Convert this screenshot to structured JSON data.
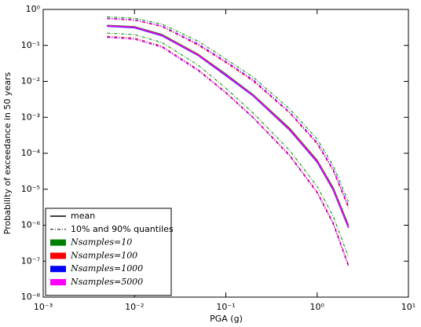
{
  "chart_data": {
    "type": "line",
    "xlabel": "PGA (g)",
    "ylabel": "Probability of exceedance in 50 years",
    "xlog": true,
    "ylog": true,
    "xlim": [
      0.001,
      10
    ],
    "ylim": [
      1e-08,
      1
    ],
    "xticks": [
      {
        "value": 0.001,
        "label": "10⁻³"
      },
      {
        "value": 0.01,
        "label": "10⁻²"
      },
      {
        "value": 0.1,
        "label": "10⁻¹"
      },
      {
        "value": 1,
        "label": "10⁰"
      },
      {
        "value": 10,
        "label": "10¹"
      }
    ],
    "yticks": [
      {
        "value": 1e-08,
        "label": "10⁻⁸"
      },
      {
        "value": 1e-07,
        "label": "10⁻⁷"
      },
      {
        "value": 1e-06,
        "label": "10⁻⁶"
      },
      {
        "value": 1e-05,
        "label": "10⁻⁵"
      },
      {
        "value": 0.0001,
        "label": "10⁻⁴"
      },
      {
        "value": 0.001,
        "label": "10⁻³"
      },
      {
        "value": 0.01,
        "label": "10⁻²"
      },
      {
        "value": 0.1,
        "label": "10⁻¹"
      },
      {
        "value": 1,
        "label": "10⁰"
      }
    ],
    "legend": "lower left",
    "line_styles": [
      "mean",
      "10% and 90% quantiles"
    ],
    "x": [
      0.005,
      0.01,
      0.02,
      0.05,
      0.1,
      0.2,
      0.5,
      1,
      1.5,
      2.2
    ],
    "series": [
      {
        "name": "Nsamples=10",
        "color": "#008000",
        "mean": [
          0.36,
          0.33,
          0.2,
          0.056,
          0.016,
          0.0042,
          0.00049,
          6.4e-05,
          1.1e-05,
          1e-06
        ],
        "q90": [
          0.62,
          0.57,
          0.39,
          0.13,
          0.042,
          0.013,
          0.0017,
          0.00025,
          4.5e-05,
          4.5e-06
        ],
        "q10": [
          0.22,
          0.2,
          0.12,
          0.028,
          0.0065,
          0.0013,
          0.00012,
          1.2e-05,
          1.8e-06,
          1.3e-07
        ]
      },
      {
        "name": "Nsamples=100",
        "color": "#ff0000",
        "mean": [
          0.35,
          0.32,
          0.19,
          0.054,
          0.015,
          0.004,
          0.00046,
          6e-05,
          1e-05,
          9e-07
        ],
        "q90": [
          0.55,
          0.5,
          0.33,
          0.1,
          0.033,
          0.01,
          0.0013,
          0.00018,
          3.2e-05,
          3e-06
        ],
        "q10": [
          0.18,
          0.16,
          0.095,
          0.021,
          0.005,
          0.001,
          9e-05,
          8.5e-06,
          1.2e-06,
          8e-08
        ]
      },
      {
        "name": "Nsamples=1000",
        "color": "#0000ff",
        "mean": [
          0.34,
          0.31,
          0.185,
          0.052,
          0.0145,
          0.0039,
          0.00044,
          5.7e-05,
          9.5e-06,
          8.5e-07
        ],
        "q90": [
          0.57,
          0.52,
          0.35,
          0.11,
          0.036,
          0.011,
          0.0014,
          0.0002,
          3.6e-05,
          3.5e-06
        ],
        "q10": [
          0.17,
          0.15,
          0.09,
          0.02,
          0.0048,
          0.00096,
          8.5e-05,
          8e-06,
          1.1e-06,
          7.5e-08
        ]
      },
      {
        "name": "Nsamples=5000",
        "color": "#ff00ff",
        "mean": [
          0.35,
          0.32,
          0.19,
          0.053,
          0.015,
          0.004,
          0.00045,
          5.9e-05,
          9.8e-06,
          8.8e-07
        ],
        "q90": [
          0.56,
          0.51,
          0.34,
          0.105,
          0.035,
          0.0105,
          0.00135,
          0.00019,
          3.4e-05,
          3.3e-06
        ],
        "q10": [
          0.165,
          0.148,
          0.088,
          0.0195,
          0.0047,
          0.00094,
          8.3e-05,
          7.8e-06,
          1.05e-06,
          7e-08
        ]
      }
    ]
  }
}
